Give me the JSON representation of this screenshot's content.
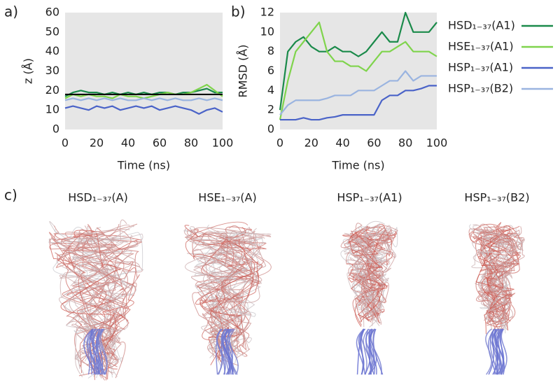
{
  "chart_data": [
    {
      "type": "line",
      "label": "a)",
      "xlabel": "Time (ns)",
      "ylabel": "z (Å)",
      "x": [
        0,
        5,
        10,
        15,
        20,
        25,
        30,
        35,
        40,
        45,
        50,
        55,
        60,
        65,
        70,
        75,
        80,
        85,
        90,
        95,
        100
      ],
      "xlim": [
        0,
        100
      ],
      "xticks": [
        0,
        20,
        40,
        60,
        80,
        100
      ],
      "ylim": [
        0,
        60
      ],
      "yticks": [
        0,
        10,
        20,
        30,
        40,
        50,
        60
      ],
      "hline": 18,
      "hline_color": "#000000",
      "background": "#e6e6e6",
      "series": [
        {
          "name": "HSD₁₋₃₇(A1)",
          "color": "#1a8a4a",
          "values": [
            17,
            19,
            20,
            19,
            19,
            18,
            19,
            18,
            19,
            18,
            19,
            18,
            19,
            19,
            18,
            19,
            19,
            20,
            21,
            19,
            19
          ]
        },
        {
          "name": "HSE₁₋₃₇(A1)",
          "color": "#7fd44c",
          "values": [
            16,
            18,
            17,
            18,
            17,
            17,
            16,
            18,
            17,
            17,
            16,
            17,
            18,
            19,
            18,
            18,
            19,
            21,
            23,
            20,
            17
          ]
        },
        {
          "name": "HSP₁₋₃₇(A1)",
          "color": "#4a63c8",
          "values": [
            11,
            12,
            11,
            10,
            12,
            11,
            12,
            10,
            11,
            12,
            11,
            12,
            10,
            11,
            12,
            11,
            10,
            8,
            10,
            11,
            9
          ]
        },
        {
          "name": "HSP₁₋₃₇(B2)",
          "color": "#9ab4e0",
          "values": [
            15,
            16,
            15,
            16,
            15,
            16,
            15,
            16,
            15,
            15,
            16,
            15,
            16,
            15,
            16,
            15,
            15,
            16,
            15,
            16,
            15
          ]
        }
      ]
    },
    {
      "type": "line",
      "label": "b)",
      "xlabel": "Time (ns)",
      "ylabel": "RMSD (Å)",
      "x": [
        0,
        5,
        10,
        15,
        20,
        25,
        30,
        35,
        40,
        45,
        50,
        55,
        60,
        65,
        70,
        75,
        80,
        85,
        90,
        95,
        100
      ],
      "xlim": [
        0,
        100
      ],
      "xticks": [
        0,
        20,
        40,
        60,
        80,
        100
      ],
      "ylim": [
        0,
        12
      ],
      "yticks": [
        0,
        2,
        4,
        6,
        8,
        10,
        12
      ],
      "background": "#e6e6e6",
      "legend": "right",
      "series": [
        {
          "name": "HSD₁₋₃₇(A1)",
          "color": "#1a8a4a",
          "values": [
            2,
            8,
            9,
            9.5,
            8.5,
            8,
            8,
            8.5,
            8,
            8,
            7.5,
            8,
            9,
            10,
            9,
            9,
            12,
            10,
            10,
            10,
            11
          ]
        },
        {
          "name": "HSE₁₋₃₇(A1)",
          "color": "#7fd44c",
          "values": [
            1,
            5,
            8,
            9,
            10,
            11,
            8,
            7,
            7,
            6.5,
            6.5,
            6,
            7,
            8,
            8,
            8.5,
            9,
            8,
            8,
            8,
            7.5
          ]
        },
        {
          "name": "HSP₁₋₃₇(A1)",
          "color": "#4a63c8",
          "values": [
            1,
            1,
            1,
            1.2,
            1,
            1,
            1.2,
            1.3,
            1.5,
            1.5,
            1.5,
            1.5,
            1.5,
            3,
            3.5,
            3.5,
            4,
            4,
            4.2,
            4.5,
            4.5
          ]
        },
        {
          "name": "HSP₁₋₃₇(B2)",
          "color": "#9ab4e0",
          "values": [
            1.5,
            2.5,
            3,
            3,
            3,
            3,
            3.2,
            3.5,
            3.5,
            3.5,
            4,
            4,
            4,
            4.5,
            5,
            5,
            6,
            5,
            5.5,
            5.5,
            5.5
          ]
        }
      ]
    }
  ],
  "panel_c": {
    "label": "c)",
    "structures": [
      "HSD₁₋₃₇(A)",
      "HSE₁₋₃₇(A)",
      "HSP₁₋₃₇(A1)",
      "HSP₁₋₃₇(B2)"
    ]
  }
}
